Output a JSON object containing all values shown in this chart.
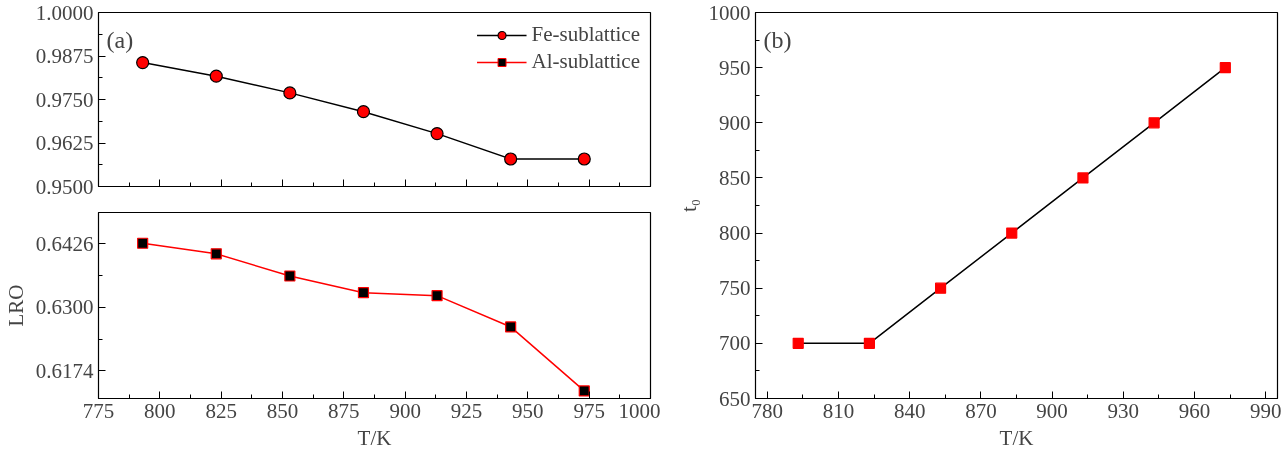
{
  "chart_data": [
    {
      "type": "line",
      "x": [
        793,
        823,
        853,
        883,
        913,
        943,
        973
      ],
      "xlim": [
        775,
        1000
      ],
      "xticks": [
        775,
        800,
        825,
        850,
        875,
        900,
        925,
        950,
        975,
        1000
      ],
      "ylim": [
        0.95,
        1.0
      ],
      "yticks": [
        {
          "value": 0.95,
          "label": "0.9500"
        },
        {
          "value": 0.9625,
          "label": "0.9625"
        },
        {
          "value": 0.975,
          "label": "0.9750"
        },
        {
          "value": 0.9875,
          "label": "0.9875"
        },
        {
          "value": 1.0,
          "label": "1.0000"
        }
      ],
      "tick_labels": "y",
      "legend": "top right",
      "marker": "circle",
      "annotations": [
        "(a)"
      ],
      "series": [
        {
          "name": "Fe-sublattice",
          "color": "#ff0000",
          "values": [
            0.9856,
            0.9817,
            0.9769,
            0.9715,
            0.9652,
            0.9579,
            0.9579
          ]
        }
      ]
    },
    {
      "type": "line",
      "x": [
        793,
        823,
        853,
        883,
        913,
        943,
        973
      ],
      "xlim": [
        775,
        1000
      ],
      "xticks": [
        775,
        800,
        825,
        850,
        875,
        900,
        925,
        950,
        975,
        1000
      ],
      "ylim": [
        0.6119,
        0.6488
      ],
      "yticks": [
        {
          "value": 0.6174,
          "label": "0.6174"
        },
        {
          "value": 0.63,
          "label": "0.6300"
        },
        {
          "value": 0.6426,
          "label": "0.6426"
        }
      ],
      "xlabel": "T/K",
      "ylabel": "LRO",
      "marker": "square",
      "series": [
        {
          "name": "Al-sublattice",
          "color": "#ff0000",
          "values": [
            0.6427,
            0.6406,
            0.6362,
            0.6329,
            0.6323,
            0.6261,
            0.6134
          ]
        }
      ]
    },
    {
      "type": "line",
      "x": [
        793,
        823,
        853,
        883,
        913,
        943,
        973
      ],
      "xlim": [
        775,
        995
      ],
      "xticks": [
        780,
        810,
        840,
        870,
        900,
        930,
        960,
        990
      ],
      "ylim": [
        650,
        1000
      ],
      "yticks": [
        650,
        700,
        750,
        800,
        850,
        900,
        950,
        1000
      ],
      "xlabel": "T/K",
      "ylabel": "t₀",
      "marker": "square",
      "annotations": [
        "(b)"
      ],
      "series": [
        {
          "color": "#ff0000",
          "values": [
            700,
            700,
            750,
            800,
            850,
            900,
            950
          ]
        }
      ]
    }
  ]
}
